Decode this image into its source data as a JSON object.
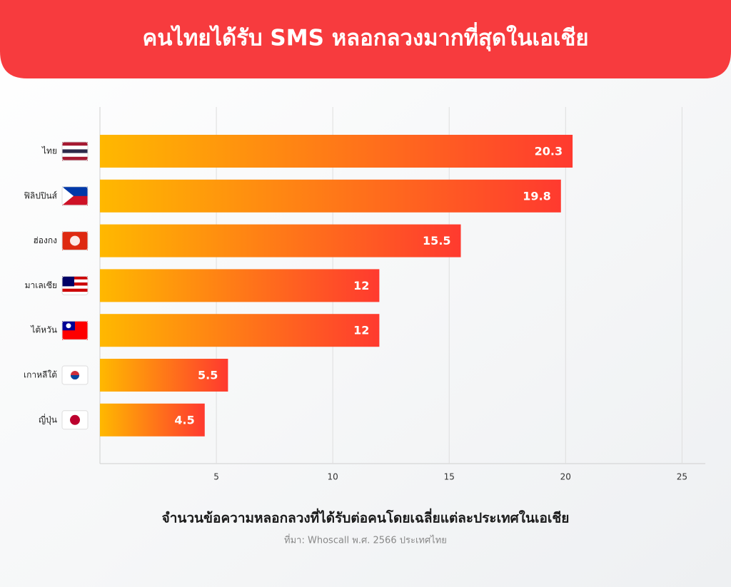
{
  "chart_data": {
    "type": "bar",
    "orientation": "horizontal",
    "title": "คนไทยได้รับ SMS หลอกลวงมากที่สุดในเอเชีย",
    "x_label": "จำนวนข้อความหลอกลวงที่ได้รับต่อคนโดยเฉลี่ยแต่ละประเทศในเอเชีย",
    "source": "ที่มา: Whoscall พ.ศ. 2566 ประเทศไทย",
    "categories": [
      "ไทย",
      "ฟิลิปปินส์",
      "ฮ่องกง",
      "มาเลเซีย",
      "ไต้หวัน",
      "เกาหลีใต้",
      "ญี่ปุ่น"
    ],
    "values": [
      20.3,
      19.8,
      15.5,
      12,
      12,
      5.5,
      4.5
    ],
    "color_start": "#ffb800",
    "color_end": "#ff3a2f",
    "xlim": [
      0,
      26
    ],
    "xticks": [
      5,
      10,
      15,
      20,
      25
    ],
    "grid": true
  }
}
